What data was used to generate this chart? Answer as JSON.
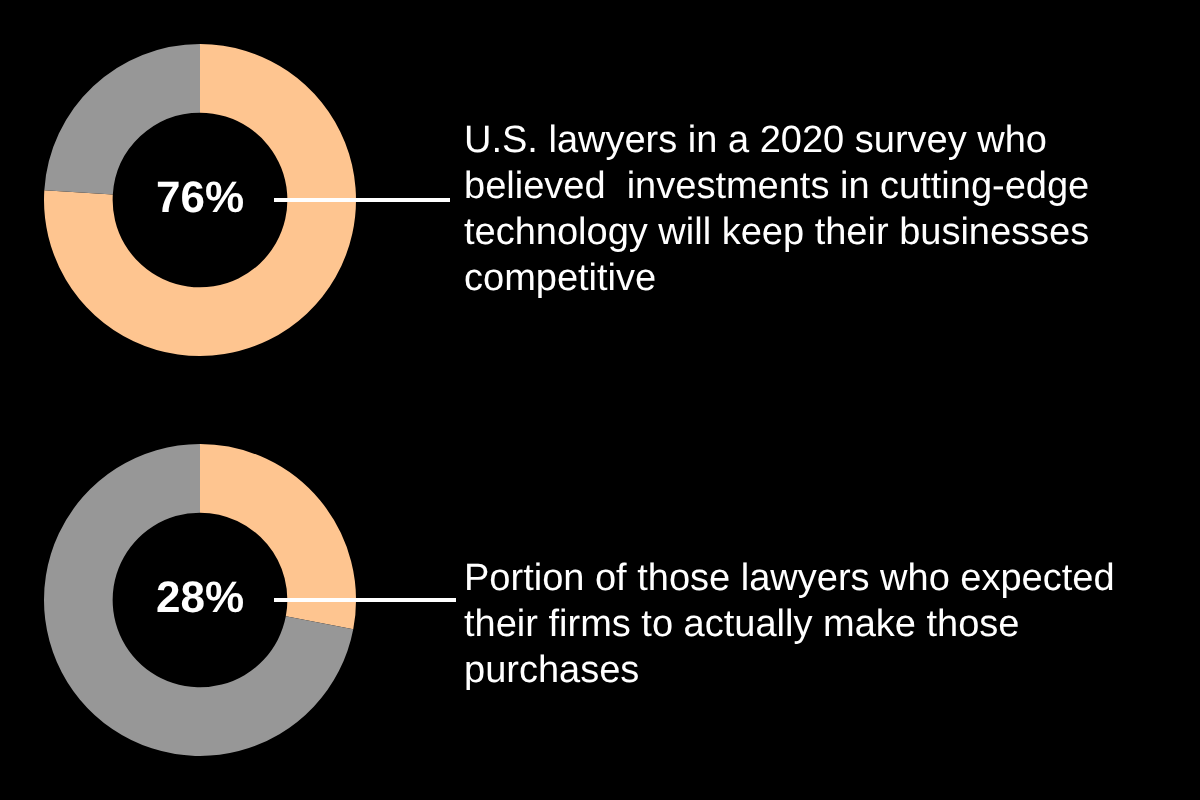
{
  "chart_data": [
    {
      "type": "donut",
      "categories": [
        null,
        null
      ],
      "values": [
        76,
        24
      ],
      "colors": [
        "#fec590",
        "#979797"
      ],
      "value_labels": [
        "76%",
        null
      ],
      "annotations": [
        "U.S. lawyers in a 2020 survey who believed  investments in cutting-edge technology will keep their businesses competitive"
      ]
    },
    {
      "type": "donut",
      "categories": [
        null,
        null
      ],
      "values": [
        28,
        72
      ],
      "colors": [
        "#fec590",
        "#979797"
      ],
      "value_labels": [
        "28%",
        null
      ],
      "annotations": [
        "Portion of those lawyers who expected their firms to actually make those purchases"
      ]
    }
  ]
}
